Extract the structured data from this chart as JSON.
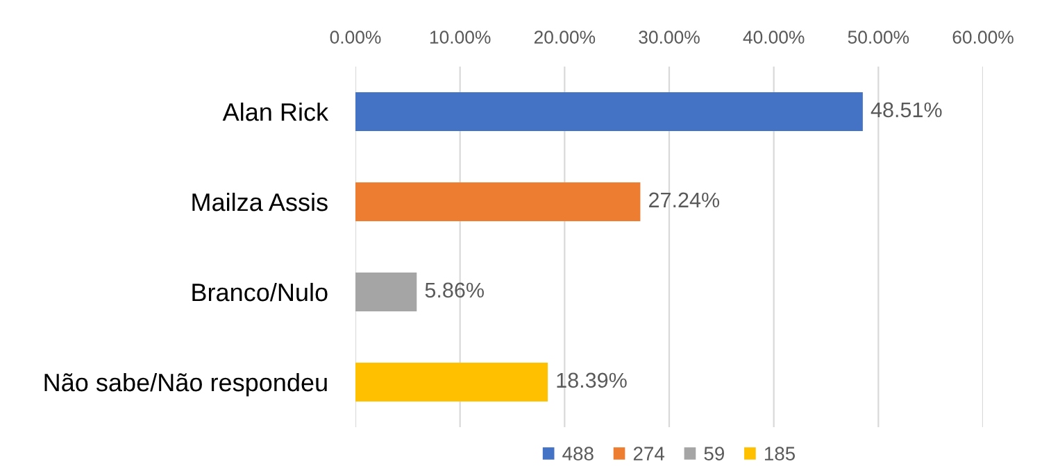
{
  "chart_data": {
    "type": "bar",
    "orientation": "horizontal",
    "categories": [
      "Alan Rick",
      "Mailza Assis",
      "Branco/Nulo",
      "Não sabe/Não respondeu"
    ],
    "series": [
      {
        "name": "488",
        "color": "#4472c4",
        "values": [
          48.51,
          null,
          null,
          null
        ],
        "value_labels": [
          "48.51%",
          null,
          null,
          null
        ]
      },
      {
        "name": "274",
        "color": "#ed7d31",
        "values": [
          null,
          27.24,
          null,
          null
        ],
        "value_labels": [
          null,
          "27.24%",
          null,
          null
        ]
      },
      {
        "name": "59",
        "color": "#a5a5a5",
        "values": [
          null,
          null,
          5.86,
          null
        ],
        "value_labels": [
          null,
          null,
          "5.86%",
          null
        ]
      },
      {
        "name": "185",
        "color": "#ffc000",
        "values": [
          null,
          null,
          null,
          18.39
        ],
        "value_labels": [
          null,
          null,
          null,
          "18.39%"
        ]
      }
    ],
    "xlim": [
      0,
      60
    ],
    "xticks": [
      {
        "value": 0,
        "label": "0.00%"
      },
      {
        "value": 10,
        "label": "10.00%"
      },
      {
        "value": 20,
        "label": "20.00%"
      },
      {
        "value": 30,
        "label": "30.00%"
      },
      {
        "value": 40,
        "label": "40.00%"
      },
      {
        "value": 50,
        "label": "50.00%"
      },
      {
        "value": 60,
        "label": "60.00%"
      }
    ],
    "grid": "x",
    "legend": "bottom"
  }
}
